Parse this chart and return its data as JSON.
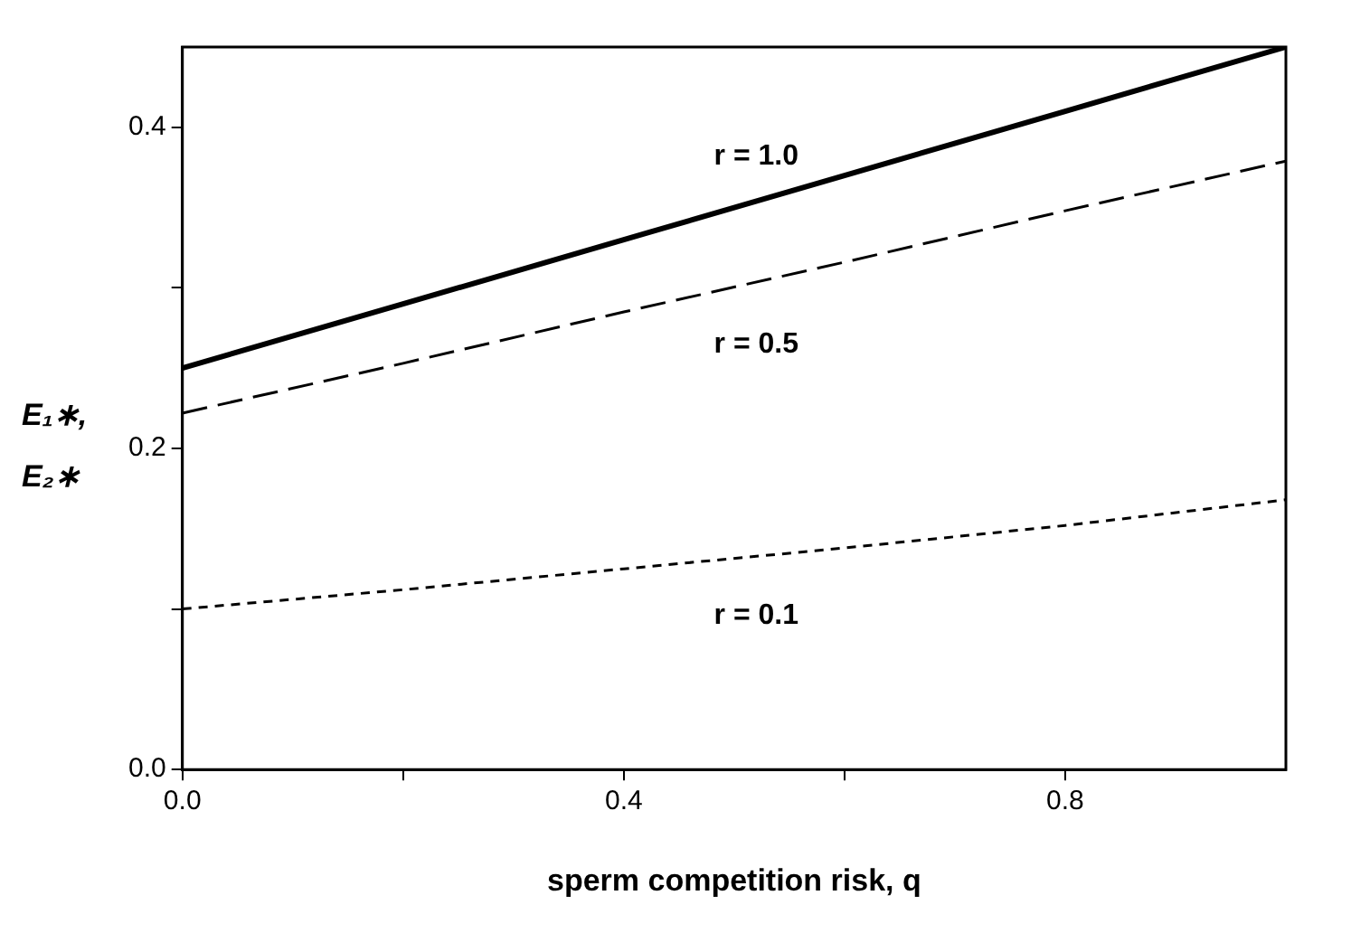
{
  "chart_data": {
    "type": "line",
    "xlabel": "sperm competition risk, q",
    "ylabel": "E₁∗, E₂∗",
    "x": [
      0,
      0.2,
      0.4,
      0.6,
      0.8,
      1.0
    ],
    "series": [
      {
        "name": "r = 1.0",
        "color": "#000000",
        "line_style": "solid",
        "values": [
          0.25,
          0.29,
          0.33,
          0.37,
          0.41,
          0.45
        ]
      },
      {
        "name": "r = 0.5",
        "color": "#000000",
        "line_style": "dashed",
        "values": [
          0.222,
          0.253,
          0.285,
          0.316,
          0.348,
          0.379
        ]
      },
      {
        "name": "r = 0.1",
        "color": "#000000",
        "line_style": "dotted",
        "values": [
          0.1,
          0.112,
          0.125,
          0.138,
          0.152,
          0.168
        ]
      }
    ],
    "xlim": [
      0,
      1.0
    ],
    "ylim": [
      0,
      0.45
    ],
    "xticks": [
      {
        "value": 0,
        "label": "0.0"
      },
      {
        "value": 0.2,
        "label": null
      },
      0.4,
      {
        "value": 0.6,
        "label": null
      },
      0.8
    ],
    "yticks": [
      {
        "value": 0,
        "label": "0.0"
      },
      {
        "value": 0.1,
        "label": null
      },
      0.2,
      {
        "value": 0.3,
        "label": null
      },
      0.4
    ],
    "grid": false,
    "legend": false,
    "marker": "none"
  }
}
